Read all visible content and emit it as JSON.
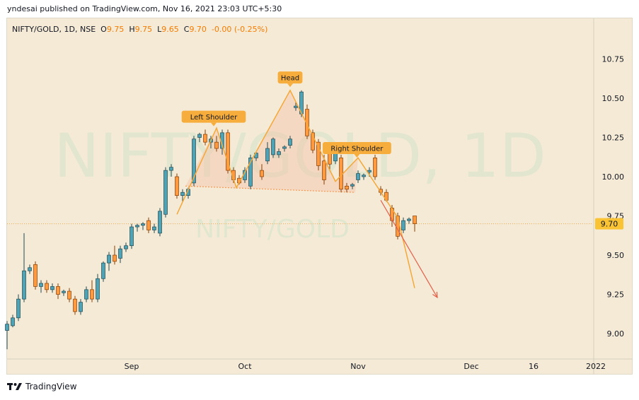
{
  "publish_line": "yndesai published on TradingView.com, Nov 16, 2021 23:03 UTC+5:30",
  "legend": {
    "symbol": "NIFTY/GOLD, 1D, NSE",
    "o_label": "O",
    "o_value": "9.75",
    "h_label": "H",
    "h_value": "9.75",
    "l_label": "L",
    "l_value": "9.65",
    "c_label": "C",
    "c_value": "9.70",
    "change": "-0.00 (-0.25%)"
  },
  "watermark": {
    "large": "NIFTY/GOLD, 1D",
    "small": "NIFTY/GOLD"
  },
  "footer_brand": "TradingView",
  "colors": {
    "up": "#4fa3b4",
    "down": "#ff9a40",
    "pattern": "#f4a83a",
    "projection": "#e3604a",
    "price_tag": "#f9c333"
  },
  "chart_data": {
    "type": "candlestick",
    "yticks": [
      9.0,
      9.25,
      9.5,
      9.75,
      10.0,
      10.25,
      10.5,
      10.75
    ],
    "ylim": [
      8.8,
      10.92
    ],
    "xticks": [
      {
        "label": "Sep",
        "x": 22
      },
      {
        "label": "Oct",
        "x": 42
      },
      {
        "label": "Nov",
        "x": 62
      },
      {
        "label": "Dec",
        "x": 82
      },
      {
        "label": "16",
        "x": 93
      },
      {
        "label": "2022",
        "x": 104
      }
    ],
    "xlim": [
      0,
      110
    ],
    "last_price": "9.70",
    "candles": [
      [
        9.02,
        9.08,
        8.9,
        9.06
      ],
      [
        9.05,
        9.12,
        9.04,
        9.1
      ],
      [
        9.1,
        9.25,
        9.08,
        9.22
      ],
      [
        9.22,
        9.64,
        9.2,
        9.4
      ],
      [
        9.4,
        9.44,
        9.38,
        9.42
      ],
      [
        9.44,
        9.46,
        9.28,
        9.3
      ],
      [
        9.3,
        9.34,
        9.26,
        9.32
      ],
      [
        9.32,
        9.34,
        9.26,
        9.28
      ],
      [
        9.28,
        9.32,
        9.26,
        9.3
      ],
      [
        9.3,
        9.32,
        9.22,
        9.25
      ],
      [
        9.26,
        9.28,
        9.24,
        9.27
      ],
      [
        9.27,
        9.29,
        9.2,
        9.22
      ],
      [
        9.22,
        9.24,
        9.12,
        9.14
      ],
      [
        9.14,
        9.22,
        9.12,
        9.2
      ],
      [
        9.22,
        9.3,
        9.2,
        9.28
      ],
      [
        9.28,
        9.34,
        9.2,
        9.22
      ],
      [
        9.22,
        9.38,
        9.2,
        9.35
      ],
      [
        9.35,
        9.46,
        9.33,
        9.45
      ],
      [
        9.45,
        9.52,
        9.4,
        9.5
      ],
      [
        9.5,
        9.56,
        9.44,
        9.46
      ],
      [
        9.48,
        9.56,
        9.45,
        9.54
      ],
      [
        9.54,
        9.58,
        9.52,
        9.56
      ],
      [
        9.56,
        9.7,
        9.54,
        9.68
      ],
      [
        9.68,
        9.7,
        9.65,
        9.69
      ],
      [
        9.69,
        9.71,
        9.66,
        9.7
      ],
      [
        9.72,
        9.74,
        9.64,
        9.66
      ],
      [
        9.66,
        9.7,
        9.64,
        9.68
      ],
      [
        9.64,
        9.8,
        9.62,
        9.78
      ],
      [
        9.76,
        10.06,
        9.74,
        10.04
      ],
      [
        10.04,
        10.08,
        10.0,
        10.06
      ],
      [
        10.0,
        10.02,
        9.86,
        9.88
      ],
      [
        9.88,
        9.92,
        9.84,
        9.9
      ],
      [
        9.88,
        9.93,
        9.86,
        9.92
      ],
      [
        9.96,
        10.26,
        9.94,
        10.24
      ],
      [
        10.25,
        10.28,
        10.22,
        10.27
      ],
      [
        10.27,
        10.3,
        10.2,
        10.22
      ],
      [
        10.22,
        10.26,
        10.18,
        10.24
      ],
      [
        10.22,
        10.26,
        10.16,
        10.18
      ],
      [
        10.18,
        10.3,
        10.14,
        10.28
      ],
      [
        10.28,
        10.3,
        10.02,
        10.04
      ],
      [
        10.04,
        10.06,
        9.96,
        9.98
      ],
      [
        9.99,
        10.01,
        9.95,
        9.96
      ],
      [
        9.98,
        10.06,
        9.96,
        10.04
      ],
      [
        9.94,
        10.14,
        9.92,
        10.12
      ],
      [
        10.12,
        10.16,
        10.1,
        10.15
      ],
      [
        10.04,
        10.08,
        9.98,
        10.0
      ],
      [
        10.1,
        10.22,
        10.08,
        10.18
      ],
      [
        10.14,
        10.25,
        10.12,
        10.24
      ],
      [
        10.14,
        10.18,
        10.12,
        10.16
      ],
      [
        10.18,
        10.2,
        10.16,
        10.19
      ],
      [
        10.2,
        10.26,
        10.18,
        10.24
      ],
      [
        10.44,
        10.48,
        10.42,
        10.45
      ],
      [
        10.4,
        10.55,
        10.38,
        10.54
      ],
      [
        10.43,
        10.46,
        10.24,
        10.26
      ],
      [
        10.28,
        10.3,
        10.15,
        10.17
      ],
      [
        10.22,
        10.24,
        10.04,
        10.07
      ],
      [
        10.1,
        10.14,
        9.95,
        9.98
      ],
      [
        10.18,
        10.2,
        10.04,
        10.08
      ],
      [
        10.1,
        10.22,
        10.08,
        10.2
      ],
      [
        10.12,
        10.14,
        9.9,
        9.92
      ],
      [
        9.94,
        9.96,
        9.9,
        9.92
      ],
      [
        9.94,
        9.96,
        9.92,
        9.95
      ],
      [
        9.98,
        10.04,
        9.96,
        10.02
      ],
      [
        10.0,
        10.02,
        9.98,
        10.01
      ],
      [
        10.03,
        10.06,
        10.0,
        10.04
      ],
      [
        10.12,
        10.14,
        9.98,
        10.0
      ],
      [
        9.92,
        9.94,
        9.88,
        9.9
      ],
      [
        9.9,
        9.92,
        9.84,
        9.85
      ],
      [
        9.8,
        9.82,
        9.68,
        9.72
      ],
      [
        9.75,
        9.77,
        9.6,
        9.62
      ],
      [
        9.66,
        9.74,
        9.64,
        9.72
      ],
      [
        9.72,
        9.74,
        9.7,
        9.73
      ],
      [
        9.75,
        9.75,
        9.65,
        9.7
      ]
    ],
    "annotations": [
      {
        "label": "Left Shoulder",
        "x": 36.5,
        "y": 10.38
      },
      {
        "label": "Head",
        "x": 50.0,
        "y": 10.63
      },
      {
        "label": "Right Shoulder",
        "x": 61.8,
        "y": 10.18
      }
    ],
    "pattern_outline": [
      [
        30,
        9.76
      ],
      [
        37,
        10.31
      ],
      [
        40.5,
        9.93
      ],
      [
        50,
        10.55
      ],
      [
        58,
        9.97
      ],
      [
        62,
        10.12
      ],
      [
        69,
        9.74
      ],
      [
        72,
        9.29
      ]
    ],
    "neckline": [
      [
        31.5,
        9.94
      ],
      [
        61.5,
        9.9
      ]
    ],
    "projection": [
      [
        66,
        9.85
      ],
      [
        76,
        9.23
      ]
    ]
  }
}
